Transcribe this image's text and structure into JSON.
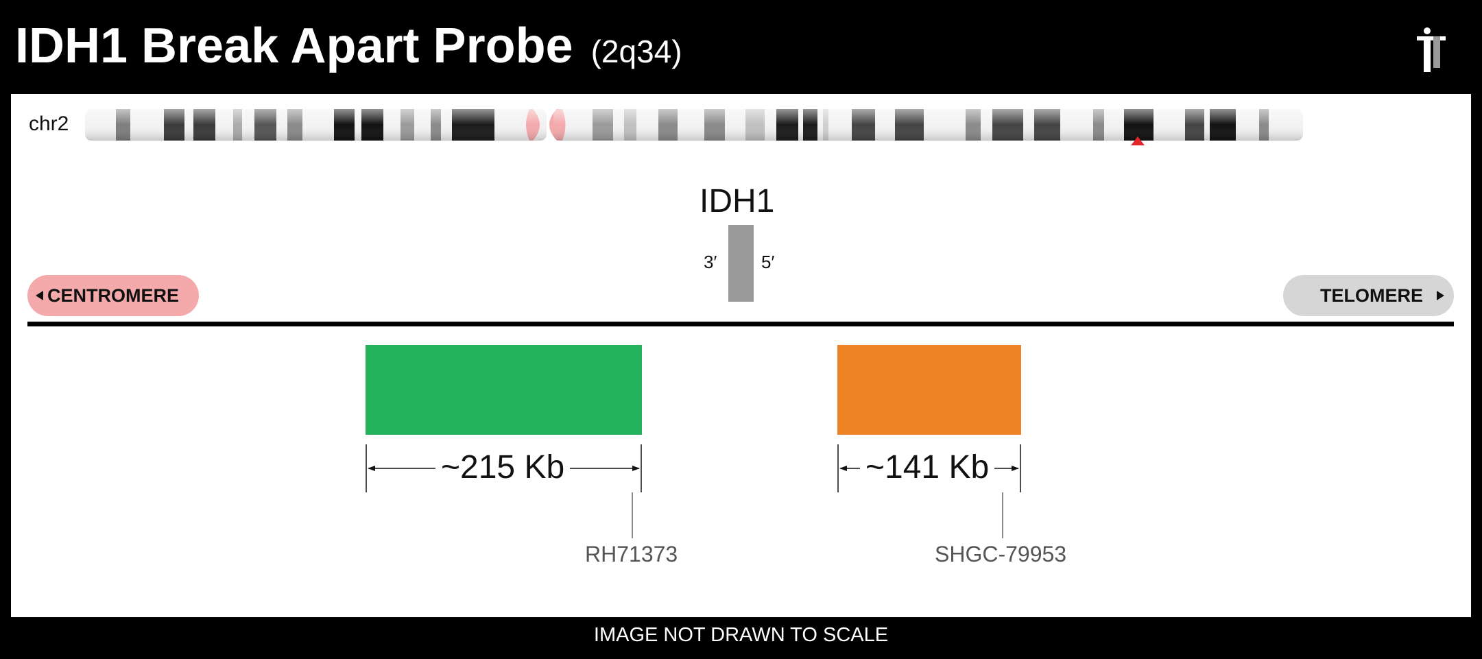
{
  "header": {
    "title": "IDH1 Break Apart Probe",
    "locus": "(2q34)"
  },
  "chromosome": {
    "label": "chr2",
    "centromere_color": "#f4a9ab",
    "marker_color": "#e3262c"
  },
  "gene": {
    "name": "IDH1",
    "strand_left": "3′",
    "strand_right": "5′"
  },
  "orientation": {
    "left": "CENTROMERE",
    "right": "TELOMERE"
  },
  "probes": [
    {
      "color": "#24b25d",
      "size": "~215 Kb",
      "marker": "RH71373"
    },
    {
      "color": "#ee8225",
      "size": "~141 Kb",
      "marker": "SHGC-79953"
    }
  ],
  "footer": "IMAGE NOT DRAWN TO SCALE"
}
